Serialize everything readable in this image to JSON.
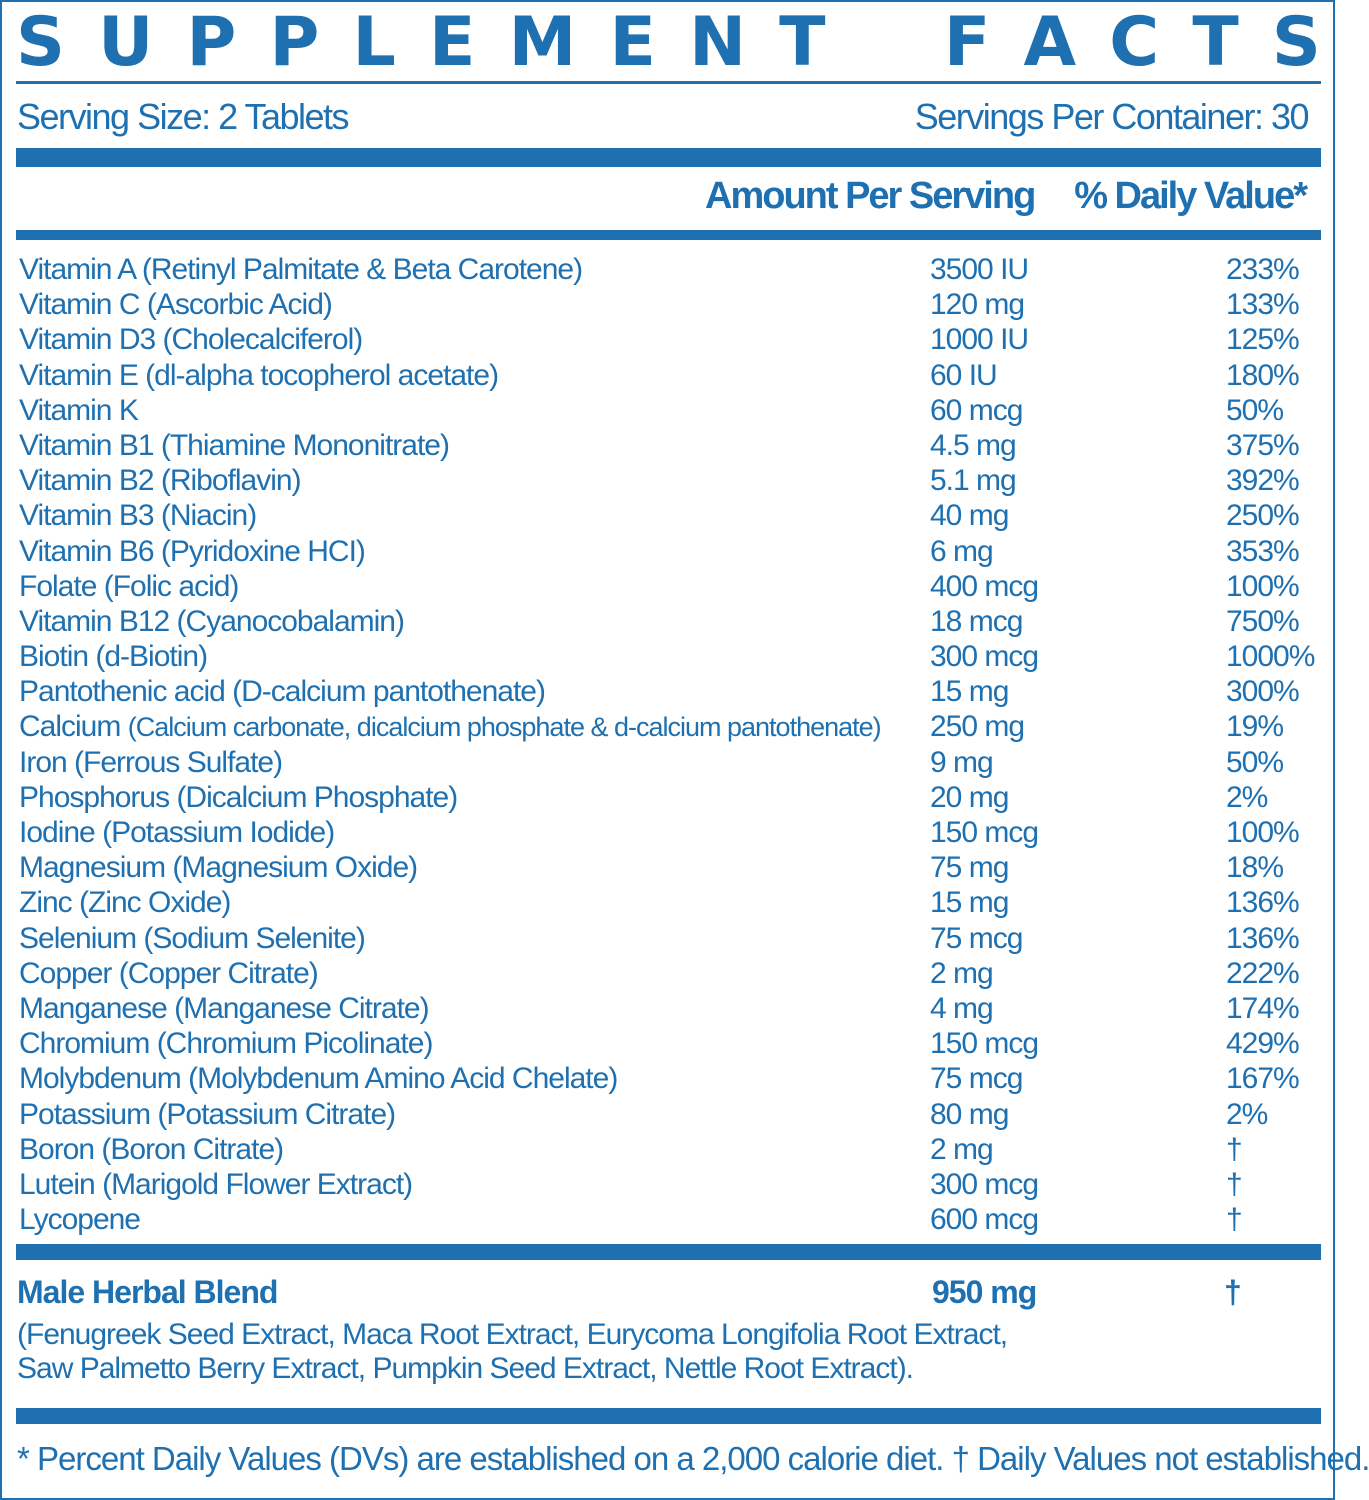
{
  "title": "SUPPLEMENT FACTS",
  "serving_size": "Serving Size: 2 Tablets",
  "servings_per_container": "Servings Per Container: 30",
  "columns": {
    "amount": "Amount Per Serving",
    "daily_value": "% Daily Value*"
  },
  "colors": {
    "accent": "#1e70b0",
    "background": "#ffffff"
  },
  "nutrients": [
    {
      "name": "Vitamin A (Retinyl Palmitate & Beta Carotene)",
      "amount": "3500 IU",
      "dv": "233%"
    },
    {
      "name": "Vitamin C (Ascorbic Acid)",
      "amount": "120 mg",
      "dv": "133%"
    },
    {
      "name": "Vitamin D3 (Cholecalciferol)",
      "amount": "1000 IU",
      "dv": "125%"
    },
    {
      "name": "Vitamin E (dl-alpha tocopherol acetate)",
      "amount": "60 IU",
      "dv": "180%"
    },
    {
      "name": "Vitamin K",
      "amount": "60 mcg",
      "dv": "50%"
    },
    {
      "name": "Vitamin B1 (Thiamine Mononitrate)",
      "amount": "4.5 mg",
      "dv": "375%"
    },
    {
      "name": "Vitamin B2 (Riboflavin)",
      "amount": "5.1 mg",
      "dv": "392%"
    },
    {
      "name": "Vitamin B3 (Niacin)",
      "amount": "40 mg",
      "dv": "250%"
    },
    {
      "name": "Vitamin B6 (Pyridoxine HCI)",
      "amount": "6 mg",
      "dv": "353%"
    },
    {
      "name": "Folate (Folic acid)",
      "amount": "400 mcg",
      "dv": "100%"
    },
    {
      "name": "Vitamin B12 (Cyanocobalamin)",
      "amount": "18 mcg",
      "dv": "750%"
    },
    {
      "name": "Biotin (d-Biotin)",
      "amount": "300 mcg",
      "dv": "1000%"
    },
    {
      "name": "Pantothenic acid (D-calcium pantothenate)",
      "amount": "15 mg",
      "dv": "300%"
    },
    {
      "name": "Calcium",
      "source": "(Calcium carbonate, dicalcium phosphate & d-calcium pantothenate)",
      "amount": "250 mg",
      "dv": "19%"
    },
    {
      "name": "Iron (Ferrous Sulfate)",
      "amount": "9 mg",
      "dv": "50%"
    },
    {
      "name": "Phosphorus (Dicalcium Phosphate)",
      "amount": "20 mg",
      "dv": "2%"
    },
    {
      "name": "Iodine (Potassium Iodide)",
      "amount": "150 mcg",
      "dv": "100%"
    },
    {
      "name": "Magnesium (Magnesium Oxide)",
      "amount": "75 mg",
      "dv": "18%"
    },
    {
      "name": "Zinc (Zinc Oxide)",
      "amount": "15 mg",
      "dv": "136%"
    },
    {
      "name": "Selenium (Sodium Selenite)",
      "amount": "75 mcg",
      "dv": "136%"
    },
    {
      "name": "Copper (Copper Citrate)",
      "amount": "2 mg",
      "dv": "222%"
    },
    {
      "name": "Manganese (Manganese Citrate)",
      "amount": "4 mg",
      "dv": "174%"
    },
    {
      "name": "Chromium (Chromium Picolinate)",
      "amount": "150 mcg",
      "dv": "429%"
    },
    {
      "name": "Molybdenum (Molybdenum Amino Acid Chelate)",
      "amount": "75 mcg",
      "dv": "167%"
    },
    {
      "name": "Potassium (Potassium Citrate)",
      "amount": "80 mg",
      "dv": "2%"
    },
    {
      "name": "Boron (Boron Citrate)",
      "amount": "2 mg",
      "dv": "†"
    },
    {
      "name": "Lutein (Marigold Flower Extract)",
      "amount": "300 mcg",
      "dv": "†"
    },
    {
      "name": "Lycopene",
      "amount": "600 mcg",
      "dv": "†"
    }
  ],
  "blend": {
    "name": "Male  Herbal Blend",
    "amount": "950 mg",
    "dv": "†",
    "ingredients_line1": "(Fenugreek Seed Extract, Maca Root Extract, Eurycoma Longifolia Root Extract,",
    "ingredients_line2": "Saw Palmetto Berry Extract, Pumpkin Seed Extract, Nettle Root Extract)."
  },
  "footnote": "* Percent Daily Values (DVs) are established on a 2,000 calorie diet. † Daily Values not established."
}
